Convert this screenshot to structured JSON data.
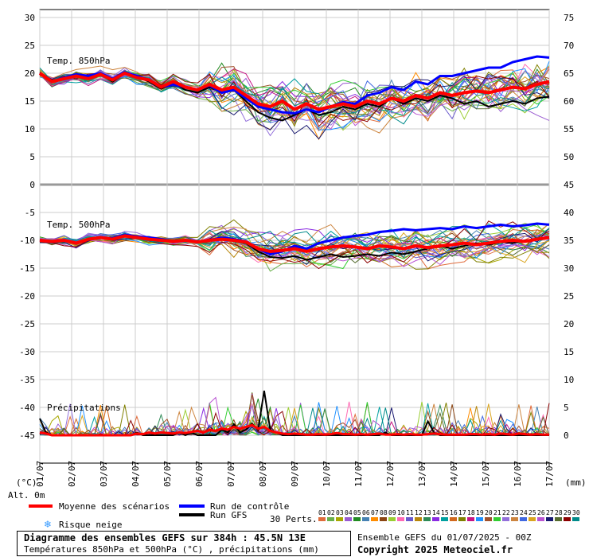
{
  "chart_data": {
    "type": "line",
    "title": "Diagramme des ensembles GEFS sur 384h : 45.5N 13E",
    "subtitle": "Températures 850hPa et 500hPa (°C) , précipitations (mm)",
    "left_axis": {
      "ticks": [
        30,
        25,
        20,
        15,
        10,
        5,
        0,
        -5,
        -10,
        -15,
        -20,
        -25,
        -30,
        -35,
        -40,
        -45
      ],
      "unit": "(°C)",
      "alt_label": "Alt. 0m"
    },
    "right_axis_temp": {
      "ticks": [
        75,
        70,
        65,
        60,
        55,
        50,
        45,
        40,
        35,
        30,
        25,
        20,
        15,
        10,
        5,
        0
      ],
      "unit": "(mm)"
    },
    "x_dates": [
      "01/07",
      "02/07",
      "03/07",
      "04/07",
      "05/07",
      "06/07",
      "07/07",
      "08/07",
      "09/07",
      "10/07",
      "11/07",
      "12/07",
      "13/07",
      "14/07",
      "15/07",
      "16/07",
      "17/07"
    ],
    "panel_labels": {
      "t850": "Temp. 850hPa",
      "t500": "Temp. 500hPa",
      "precip": "Précipitations"
    },
    "mean_850": [
      20,
      18.5,
      19,
      19.5,
      19,
      19.8,
      18.8,
      20,
      19.2,
      18.8,
      17.5,
      18.5,
      17.5,
      17,
      18,
      17,
      17.5,
      16,
      14.5,
      14,
      15,
      13.5,
      14.5,
      13.5,
      14,
      14.5,
      14,
      15,
      14.5,
      15.5,
      15,
      16,
      15.5,
      16.5,
      16,
      16.5,
      16.8,
      16.5,
      17,
      17.5,
      17.2,
      18,
      18.5
    ],
    "mean_500": [
      -10,
      -10.2,
      -10,
      -10.5,
      -9.8,
      -9.5,
      -9.8,
      -9.2,
      -9.5,
      -9.8,
      -10,
      -10.2,
      -10,
      -10.3,
      -10,
      -9.8,
      -10,
      -10.3,
      -11.5,
      -12,
      -11.8,
      -11.5,
      -12,
      -11.5,
      -11.2,
      -11,
      -11.2,
      -11.5,
      -11,
      -11.2,
      -11.5,
      -11,
      -11.3,
      -11,
      -10.8,
      -10.5,
      -10.8,
      -10.5,
      -10.2,
      -10,
      -10.2,
      -9.8,
      -9.5
    ],
    "control_850": [
      20,
      18.5,
      19.2,
      19.8,
      19.5,
      20,
      19,
      20.2,
      19.5,
      18.8,
      17.5,
      18,
      17.5,
      17,
      17.8,
      16.5,
      17,
      15.5,
      14,
      13.5,
      13,
      12.8,
      13.5,
      13,
      14,
      14.8,
      14.5,
      16,
      16.5,
      17.5,
      17,
      18.5,
      18,
      19.5,
      19.5,
      20,
      20.5,
      21,
      21,
      22,
      22.5,
      23,
      22.8
    ],
    "control_500": [
      -10,
      -10.3,
      -10,
      -10.5,
      -9.8,
      -9.5,
      -9.6,
      -9,
      -9.3,
      -9.5,
      -9.8,
      -10.2,
      -10,
      -10.3,
      -10,
      -9.5,
      -9.8,
      -10.2,
      -11.5,
      -12.5,
      -12,
      -11,
      -11.5,
      -10.5,
      -10,
      -9.5,
      -9.2,
      -9,
      -8.5,
      -8.3,
      -8,
      -8.2,
      -8,
      -7.8,
      -8,
      -7.5,
      -7.8,
      -7.5,
      -7.2,
      -7.5,
      -7.3,
      -7,
      -7.2
    ],
    "gfs_850": [
      20,
      18.5,
      19,
      19.5,
      19.2,
      19.8,
      18.5,
      20,
      19.4,
      18.5,
      17.2,
      18.2,
      17,
      16.5,
      17.5,
      16.5,
      17,
      15,
      13,
      12,
      11.5,
      12.5,
      13.5,
      12.5,
      13,
      14,
      13.5,
      14.5,
      14,
      15.5,
      14.5,
      15.5,
      15,
      16,
      15.5,
      14.5,
      15,
      14,
      14.5,
      15,
      14.5,
      15.5,
      15.8
    ],
    "gfs_500": [
      -10,
      -10.2,
      -10,
      -10.5,
      -9.8,
      -9.5,
      -9.8,
      -9.2,
      -9.5,
      -9.6,
      -10,
      -10.3,
      -10.1,
      -10.3,
      -10,
      -9.8,
      -10,
      -10.5,
      -12,
      -13,
      -13.2,
      -12.8,
      -13.5,
      -13,
      -12.5,
      -13,
      -12.8,
      -12.5,
      -12.8,
      -12.2,
      -12.5,
      -12,
      -11.5,
      -11,
      -11.5,
      -11,
      -10.5,
      -10.8,
      -10.3,
      -10.5,
      -10,
      -9.8,
      -9.5
    ],
    "gfs_precip_mm": [
      3,
      0.5,
      0,
      0,
      0,
      0,
      0,
      0,
      0,
      0,
      0,
      0,
      0,
      0,
      0,
      0,
      0.5,
      0,
      0,
      0,
      0,
      0,
      0,
      0.5,
      0,
      0.5,
      0,
      0,
      0,
      0,
      1,
      0.5,
      2,
      0.5,
      1,
      2,
      1,
      8,
      1,
      0.5,
      0,
      0,
      0,
      0,
      0,
      0,
      0,
      0,
      0,
      0,
      0,
      0,
      0,
      0,
      0,
      0,
      0,
      0.5,
      0,
      0,
      0,
      0,
      0,
      0,
      2.5,
      0.5,
      0,
      0,
      0,
      0,
      0,
      0,
      0,
      0,
      0,
      0,
      0,
      0,
      0,
      0,
      0,
      0,
      0,
      0,
      0
    ],
    "mean_precip_mm": [
      0.5,
      0.3,
      0,
      0,
      0,
      0,
      0,
      0,
      0,
      0,
      0,
      0,
      0,
      0,
      0,
      0,
      0.3,
      0.2,
      0.5,
      0.3,
      0.5,
      0.4,
      0.3,
      0.5,
      0.4,
      0.6,
      0.8,
      0.5,
      1,
      0.8,
      1.2,
      1,
      1.5,
      1.2,
      1.5,
      1.8,
      1.2,
      1.5,
      0.8,
      0.5,
      0.3,
      0.2,
      0.3,
      0.2,
      0.1,
      0.1,
      0.2,
      0.1,
      0.2,
      0.4,
      0.2,
      0.2,
      0.1,
      0.2,
      0.1,
      0.2,
      0.3,
      0.1,
      0.1,
      0.2,
      0.1,
      0.2,
      0.1,
      0.1,
      0.2,
      0.3,
      0.2,
      0.1,
      0.1,
      0.1,
      0.1,
      0.2,
      0.2,
      0.1,
      0.2,
      0.1,
      0.3,
      0.2,
      0.1,
      0.3,
      0.2,
      0.1,
      0.2,
      0.1,
      0.1
    ]
  },
  "legend": {
    "mean": "Moyenne des scénarios",
    "control": "Run de contrôle",
    "gfs": "Run GFS",
    "snow": "Risque neige",
    "perts_label": "30 Perts.",
    "pert_numbers": [
      "01",
      "02",
      "03",
      "04",
      "05",
      "06",
      "07",
      "08",
      "09",
      "10",
      "11",
      "12",
      "13",
      "14",
      "15",
      "16",
      "17",
      "18",
      "19",
      "20",
      "21",
      "22",
      "23",
      "24",
      "25",
      "26",
      "27",
      "28",
      "29",
      "30"
    ],
    "colors": {
      "mean": "#ff0000",
      "control": "#0000ff",
      "gfs": "#000000",
      "snow": "#3399ff"
    },
    "snow_icon": "snowflake-icon"
  },
  "footer": {
    "run_info": "Ensemble GEFS du 01/07/2025 - 00Z",
    "copyright": "Copyright 2025 Meteociel.fr"
  }
}
